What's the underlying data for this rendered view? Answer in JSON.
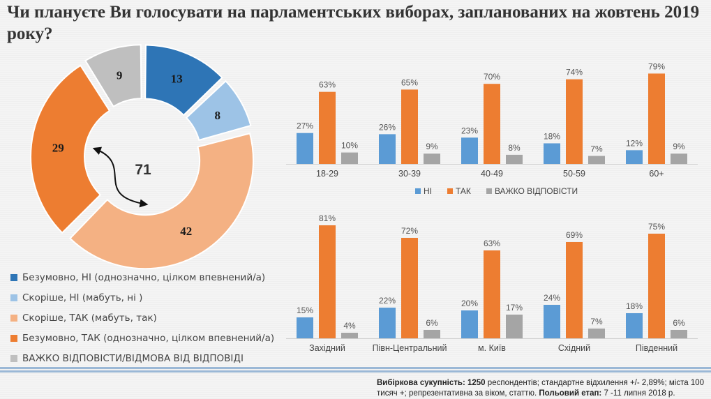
{
  "title": "Чи плануєте Ви голосувати на парламентських виборах, запланованих на жовтень 2019 року?",
  "colors": {
    "definitely_no": "#2e75b6",
    "rather_no": "#9dc3e6",
    "rather_yes": "#f4b183",
    "definitely_yes": "#ed7d31",
    "hard_to_say": "#bfbfbf",
    "bar_no": "#5b9bd5",
    "bar_yes": "#ed7d31",
    "bar_hard": "#a5a5a5"
  },
  "legend": {
    "definitely_no": "Безумовно, НІ (однозначно, цілком впевнений/а)",
    "rather_no": "Скоріше, НІ (мабуть, ні )",
    "rather_yes": "Скоріше, ТАК (мабуть, так)",
    "definitely_yes": "Безумовно, ТАК (однозначно, цілком впевнений/а)",
    "hard_to_say": "ВАЖКО ВІДПОВІСТИ/ВІДМОВА ВІД ВІДПОВІДІ"
  },
  "bar_legend": {
    "no": "НІ",
    "yes": "ТАК",
    "hard": "ВАЖКО ВІДПОВІСТИ"
  },
  "footer": {
    "sample_label": "Вибіркова сукупність:",
    "sample_value": "1250",
    "sample_text": "респондентів; стандартне  відхилення +/- 2,89%; міста 100 тисяч +; репрезентативна за віком, статтю.",
    "fieldwork_label": "Польовий етап:",
    "fieldwork_value": "7 -11 липня 2018 р."
  },
  "chart_data": [
    {
      "type": "pie",
      "style": "donut",
      "title": "",
      "slices": [
        {
          "key": "definitely_no",
          "value": 13
        },
        {
          "key": "rather_no",
          "value": 8
        },
        {
          "key": "rather_yes",
          "value": 42
        },
        {
          "key": "definitely_yes",
          "value": 29
        },
        {
          "key": "hard_to_say",
          "value": 9
        }
      ],
      "annotation": "71"
    },
    {
      "type": "bar",
      "title": "",
      "categories": [
        "18-29",
        "30-39",
        "40-49",
        "50-59",
        "60+"
      ],
      "series": [
        {
          "name": "НІ",
          "values": [
            27,
            26,
            23,
            18,
            12
          ]
        },
        {
          "name": "ТАК",
          "values": [
            63,
            65,
            70,
            74,
            79
          ]
        },
        {
          "name": "ВАЖКО ВІДПОВІСТИ",
          "values": [
            10,
            9,
            8,
            7,
            9
          ]
        }
      ],
      "value_format": "%",
      "legend": "bottom"
    },
    {
      "type": "bar",
      "title": "",
      "categories": [
        "Західний",
        "Півн-Центральний",
        "м. Київ",
        "Східний",
        "Південний"
      ],
      "series": [
        {
          "name": "НІ",
          "values": [
            15,
            22,
            20,
            24,
            18
          ]
        },
        {
          "name": "ТАК",
          "values": [
            81,
            72,
            63,
            69,
            75
          ]
        },
        {
          "name": "ВАЖКО ВІДПОВІСТИ",
          "values": [
            4,
            6,
            17,
            7,
            6
          ]
        }
      ],
      "value_format": "%",
      "legend": "none"
    }
  ]
}
